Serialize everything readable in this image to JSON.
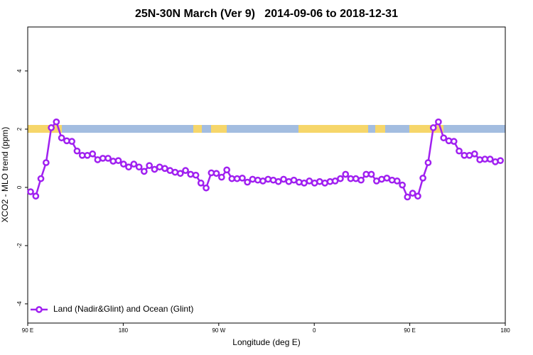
{
  "chart_data": {
    "type": "line",
    "title": "25N-30N March (Ver 9)   2014-09-06 to 2018-12-31",
    "x_label": "Longitude (deg E)",
    "y_label": "XCO2 - MLO trend (ppm)",
    "x": [
      92.7,
      97.6,
      102.4,
      107.3,
      112.2,
      117.0,
      121.9,
      126.8,
      131.6,
      136.5,
      141.4,
      146.2,
      151.1,
      155.9,
      160.8,
      165.7,
      170.5,
      175.4,
      180.3,
      185.1,
      190.0,
      194.9,
      199.7,
      204.6,
      209.5,
      214.3,
      219.2,
      224.1,
      228.9,
      233.8,
      238.7,
      243.5,
      248.4,
      253.2,
      258.1,
      263.0,
      267.8,
      272.7,
      277.6,
      282.4,
      287.3,
      292.2,
      297.0,
      301.9,
      306.8,
      311.6,
      316.5,
      321.4,
      326.2,
      331.1,
      336.0,
      340.8,
      345.7,
      350.5,
      355.4,
      360.3,
      365.1,
      370.0,
      374.9,
      379.7,
      384.6,
      389.5,
      394.3,
      399.2,
      404.1,
      408.9,
      413.8,
      418.7,
      423.5,
      428.4,
      433.3,
      438.1,
      443.0,
      447.8,
      452.7,
      457.6,
      462.4,
      467.3,
      472.2,
      477.0,
      481.9,
      486.8,
      491.6,
      496.5,
      501.4,
      506.2,
      511.1,
      516.0,
      520.8,
      525.7,
      530.6,
      535.4
    ],
    "series": [
      {
        "name": "Land (Nadir&Glint) and Ocean (Glint)",
        "color": "#a020f0",
        "values": [
          -0.15,
          -0.3,
          0.3,
          0.85,
          2.05,
          2.25,
          1.7,
          1.6,
          1.58,
          1.25,
          1.1,
          1.1,
          1.15,
          0.95,
          1.0,
          1.0,
          0.9,
          0.92,
          0.8,
          0.7,
          0.8,
          0.7,
          0.55,
          0.75,
          0.62,
          0.7,
          0.65,
          0.58,
          0.52,
          0.48,
          0.58,
          0.45,
          0.42,
          0.15,
          -0.02,
          0.5,
          0.48,
          0.35,
          0.6,
          0.3,
          0.3,
          0.32,
          0.18,
          0.28,
          0.25,
          0.22,
          0.28,
          0.25,
          0.2,
          0.28,
          0.2,
          0.25,
          0.18,
          0.15,
          0.22,
          0.15,
          0.2,
          0.15,
          0.2,
          0.22,
          0.3,
          0.45,
          0.3,
          0.3,
          0.25,
          0.45,
          0.45,
          0.22,
          0.28,
          0.32,
          0.25,
          0.22,
          0.08,
          -0.33,
          -0.2,
          -0.3,
          0.32,
          0.85,
          2.05,
          2.25,
          1.7,
          1.6,
          1.58,
          1.25,
          1.1,
          1.1,
          1.15,
          0.95,
          0.97,
          0.97,
          0.88,
          0.92
        ]
      }
    ],
    "xlim": [
      90,
      540
    ],
    "xticks": [
      {
        "value": 90,
        "label": "90 E"
      },
      180,
      {
        "value": 270,
        "label": "90 W"
      },
      {
        "value": 360,
        "label": "0"
      },
      {
        "value": 450,
        "label": "90 E"
      },
      {
        "value": 540,
        "label": "180"
      }
    ],
    "ylim": [
      -4.66,
      5.51
    ],
    "yticks": [
      -4,
      -2,
      0,
      2,
      4
    ],
    "legend": "bottomleft"
  }
}
